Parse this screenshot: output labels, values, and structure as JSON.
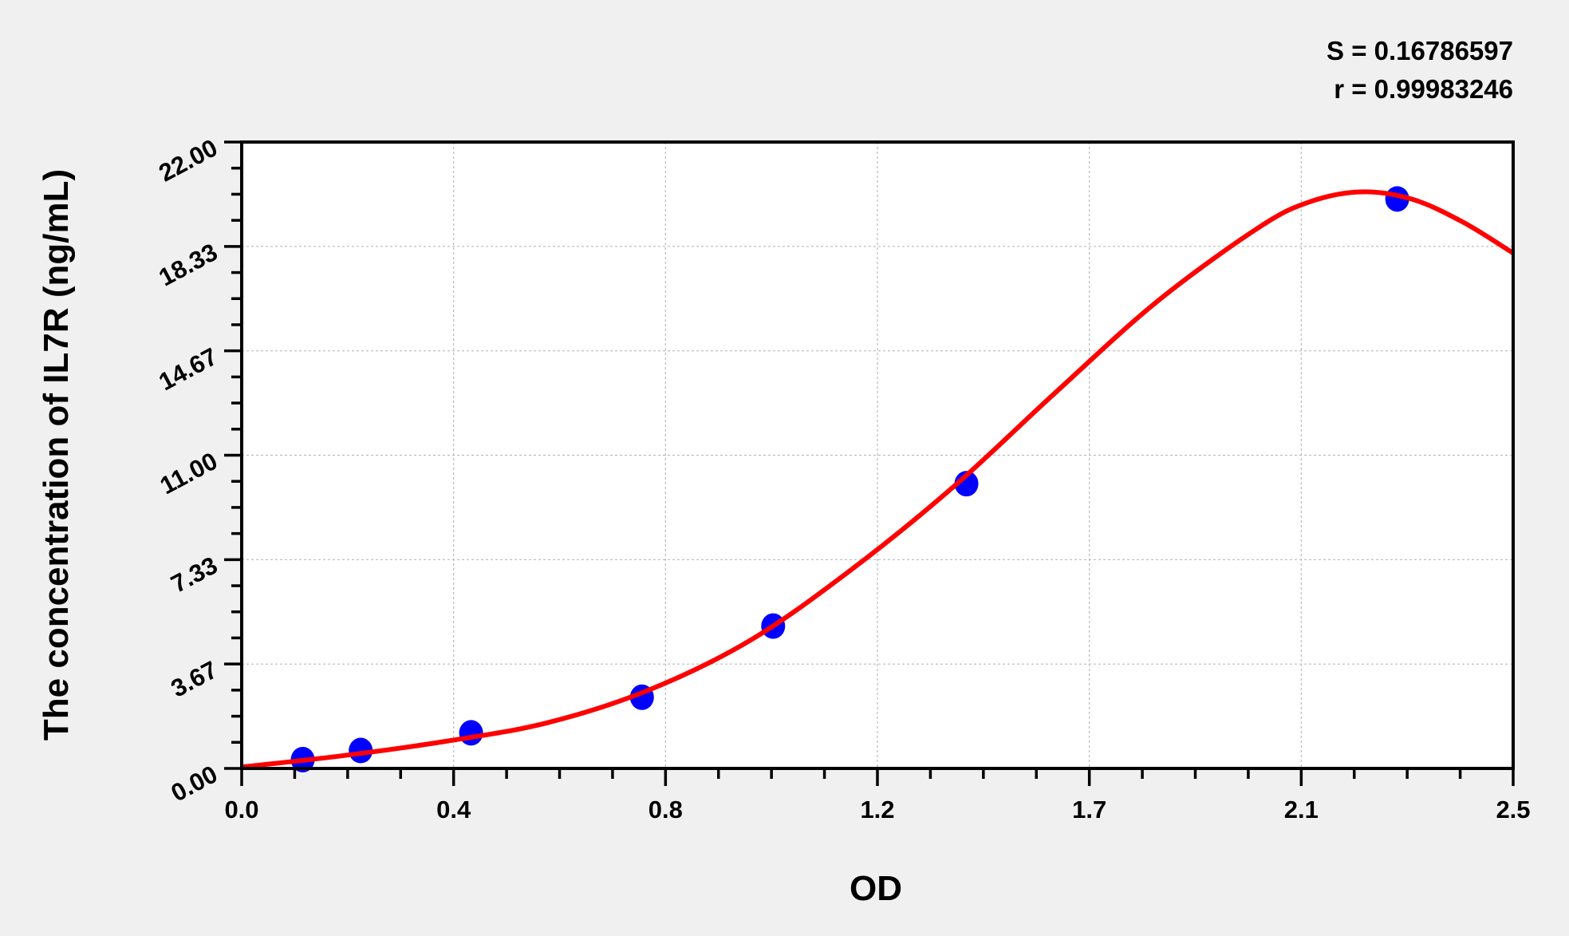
{
  "chart_data": {
    "type": "scatter",
    "title": "",
    "xlabel": "OD",
    "ylabel": "The concentration of IL7R (ng/mL)",
    "xlim": [
      0,
      2.5
    ],
    "ylim": [
      0,
      22
    ],
    "x_tick_labels": [
      "0.0",
      "0.4",
      "0.8",
      "1.2",
      "1.7",
      "2.1",
      "2.5"
    ],
    "y_tick_labels": [
      "0.00",
      "3.67",
      "7.33",
      "11.00",
      "14.67",
      "18.33",
      "22.00"
    ],
    "grid": true,
    "stats": [
      "S = 0.16786597",
      "r = 0.99983246"
    ],
    "points": {
      "x": [
        0.12,
        0.234,
        0.451,
        0.787,
        1.045,
        1.425,
        2.272
      ],
      "y": [
        0.31,
        0.63,
        1.25,
        2.5,
        5,
        10,
        20
      ],
      "color": "#0000ff"
    },
    "fit_curve": {
      "color": "#ff0000",
      "x": [
        0,
        0.2,
        0.4,
        0.6,
        0.8,
        1.0,
        1.2,
        1.4,
        1.6,
        1.8,
        2.0,
        2.1,
        2.2,
        2.3,
        2.4,
        2.5
      ],
      "y": [
        0.05,
        0.45,
        0.95,
        1.6,
        2.75,
        4.5,
        7.0,
        9.9,
        13.2,
        16.4,
        19.0,
        19.9,
        20.25,
        20.0,
        19.2,
        18.1
      ]
    }
  }
}
